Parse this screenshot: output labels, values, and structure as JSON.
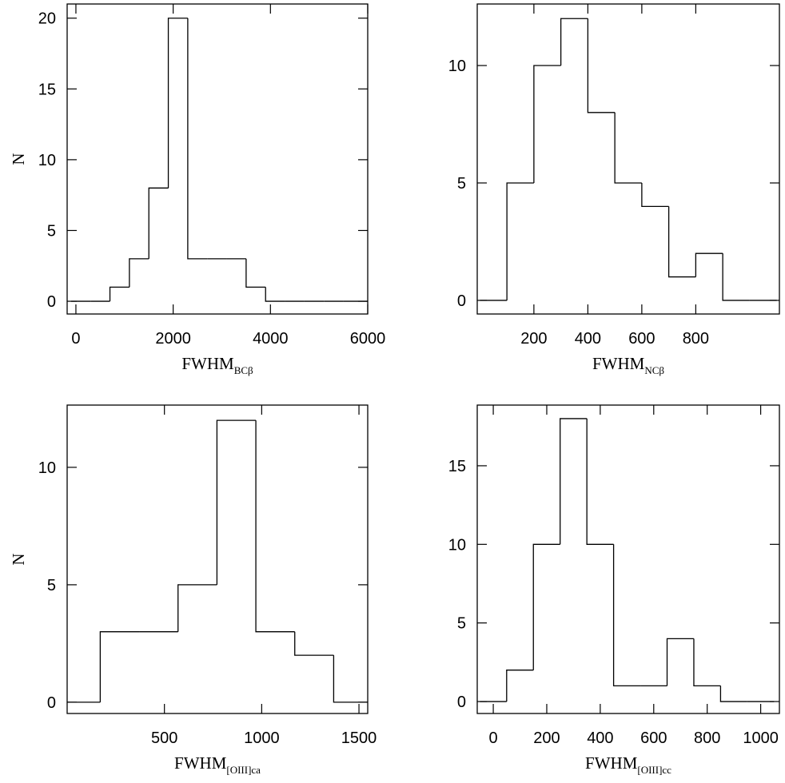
{
  "chart_data": [
    {
      "type": "histogram",
      "color": "#000000",
      "bins": [
        -100,
        300,
        700,
        1100,
        1500,
        1900,
        2300,
        2700,
        3100,
        3500,
        3900,
        4300,
        4700,
        5100,
        5500,
        5900,
        6300
      ],
      "values": [
        0,
        0,
        1,
        3,
        8,
        20,
        3,
        3,
        3,
        1,
        0,
        0,
        0,
        0,
        0,
        0
      ],
      "xlim": [
        -180,
        6000
      ],
      "ylim": [
        -0.9,
        21
      ],
      "xticks": [
        0,
        2000,
        4000,
        6000
      ],
      "yticks": [
        0,
        5,
        10,
        15,
        20
      ],
      "xlabel": "FWHM",
      "xlabel_sub": "BCβ",
      "ylabel": "N"
    },
    {
      "type": "histogram",
      "color": "#000000",
      "bins": [
        0,
        100,
        200,
        300,
        400,
        500,
        600,
        700,
        800,
        900,
        1000,
        1100
      ],
      "values": [
        0,
        5,
        10,
        12,
        8,
        5,
        4,
        1,
        2,
        0,
        0
      ],
      "xlim": [
        -10,
        1110
      ],
      "ylim": [
        -0.58,
        12.62
      ],
      "xticks": [
        200,
        400,
        600,
        800
      ],
      "yticks": [
        0,
        5,
        10
      ],
      "xlabel": "FWHM",
      "xlabel_sub": "NCβ"
    },
    {
      "type": "histogram",
      "color": "#000000",
      "bins": [
        -30,
        170,
        370,
        570,
        770,
        970,
        1170,
        1370,
        1570
      ],
      "values": [
        0,
        3,
        3,
        5,
        12,
        3,
        2,
        0
      ],
      "xlim": [
        0,
        1545
      ],
      "ylim": [
        -0.48,
        12.65
      ],
      "xticks": [
        500,
        1000,
        1500
      ],
      "yticks": [
        0,
        5,
        10
      ],
      "xlabel": "FWHM",
      "xlabel_sub": "[OIII]ca",
      "ylabel": "N"
    },
    {
      "type": "histogram",
      "color": "#000000",
      "bins": [
        -50,
        50,
        150,
        250,
        350,
        450,
        550,
        650,
        750,
        850,
        950,
        1050
      ],
      "values": [
        0,
        2,
        10,
        18,
        10,
        1,
        1,
        4,
        1,
        0,
        0
      ],
      "xlim": [
        -60,
        1070
      ],
      "ylim": [
        -0.76,
        18.86
      ],
      "xticks": [
        0,
        200,
        400,
        600,
        800,
        1000
      ],
      "yticks": [
        0,
        5,
        10,
        15
      ],
      "xlabel": "FWHM",
      "xlabel_sub": "[OIII]cc"
    }
  ]
}
